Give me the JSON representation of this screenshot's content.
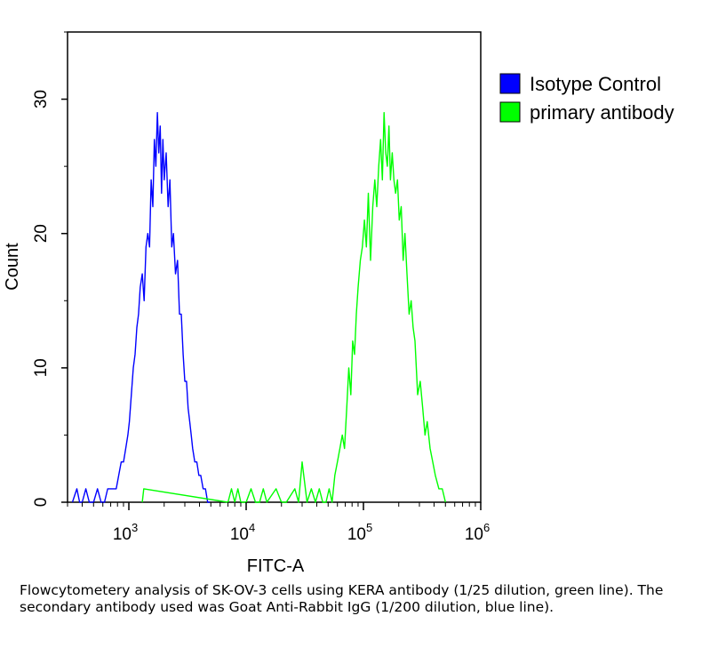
{
  "chart_data": {
    "type": "line",
    "title": "",
    "xlabel": "FITC-A",
    "ylabel": "Count",
    "xscale": "log",
    "xlim": [
      300,
      1000000
    ],
    "ylim": [
      0,
      35
    ],
    "x_ticks": [
      {
        "value": 1000,
        "base": "10",
        "exp": "3"
      },
      {
        "value": 10000,
        "base": "10",
        "exp": "4"
      },
      {
        "value": 100000,
        "base": "10",
        "exp": "5"
      },
      {
        "value": 1000000,
        "base": "10",
        "exp": "6"
      }
    ],
    "y_ticks": [
      {
        "value": 0,
        "label": "0"
      },
      {
        "value": 10,
        "label": "10"
      },
      {
        "value": 20,
        "label": "20"
      },
      {
        "value": 30,
        "label": "30"
      }
    ],
    "legend_position": "outside-right-top",
    "series": [
      {
        "name": "Isotype Control",
        "color": "#0000ff",
        "x": [
          330,
          360,
          380,
          400,
          430,
          460,
          500,
          540,
          580,
          620,
          660,
          700,
          740,
          780,
          820,
          860,
          900,
          940,
          980,
          1010,
          1050,
          1090,
          1130,
          1170,
          1210,
          1250,
          1300,
          1350,
          1400,
          1450,
          1500,
          1550,
          1600,
          1650,
          1700,
          1750,
          1800,
          1850,
          1900,
          1950,
          2000,
          2080,
          2160,
          2240,
          2320,
          2400,
          2500,
          2600,
          2700,
          2800,
          2900,
          3000,
          3100,
          3200,
          3300,
          3400,
          3500,
          3650,
          3800,
          3950,
          4100,
          4300,
          4500,
          4700,
          4900
        ],
        "y": [
          0,
          1,
          0,
          0,
          1,
          0,
          0,
          1,
          0,
          0,
          1,
          1,
          1,
          1,
          2,
          3,
          3,
          4,
          5,
          6,
          8,
          10,
          11,
          13,
          14,
          16,
          17,
          15,
          19,
          20,
          19,
          24,
          22,
          27,
          25,
          29,
          26,
          28,
          23,
          27,
          24,
          26,
          22,
          24,
          19,
          20,
          17,
          18,
          14,
          14,
          11,
          9,
          9,
          7,
          6,
          5,
          4,
          3,
          3,
          2,
          2,
          1,
          1,
          0,
          0
        ]
      },
      {
        "name": "primary antibody",
        "color": "#00ff00",
        "x": [
          1300,
          1340,
          7000,
          7500,
          8000,
          8500,
          9000,
          10000,
          11000,
          12000,
          13000,
          14000,
          15000,
          18000,
          20000,
          22000,
          26000,
          28000,
          30000,
          33000,
          36000,
          39000,
          42000,
          45000,
          48000,
          51000,
          54000,
          57000,
          60000,
          63000,
          66000,
          69000,
          72000,
          75000,
          78000,
          81000,
          84000,
          87000,
          90000,
          94000,
          98000,
          102000,
          106000,
          110000,
          115000,
          120000,
          125000,
          130000,
          135000,
          140000,
          145000,
          150000,
          155000,
          160000,
          165000,
          170000,
          176000,
          182000,
          188000,
          195000,
          202000,
          210000,
          218000,
          226000,
          235000,
          245000,
          255000,
          265000,
          275000,
          290000,
          305000,
          320000,
          335000,
          350000,
          370000,
          390000,
          410000,
          440000,
          470000,
          500000
        ],
        "y": [
          0,
          1,
          0,
          1,
          0,
          1,
          0,
          0,
          1,
          0,
          0,
          1,
          0,
          1,
          0,
          0,
          1,
          0,
          3,
          0,
          1,
          0,
          1,
          0,
          0,
          1,
          0,
          2,
          3,
          4,
          5,
          4,
          7,
          10,
          8,
          12,
          11,
          14,
          16,
          18,
          19,
          21,
          19,
          23,
          18,
          22,
          24,
          22,
          25,
          27,
          24,
          29,
          26,
          25,
          28,
          24,
          26,
          24,
          23,
          24,
          21,
          22,
          18,
          20,
          17,
          14,
          15,
          13,
          12,
          8,
          9,
          7,
          5,
          6,
          4,
          3,
          2,
          1,
          1,
          0
        ]
      }
    ]
  },
  "caption": "Flowcytometery analysis of SK-OV-3 cells using KERA antibody (1/25 dilution, green line). The secondary antibody used was Goat Anti-Rabbit IgG (1/200 dilution, blue line)."
}
